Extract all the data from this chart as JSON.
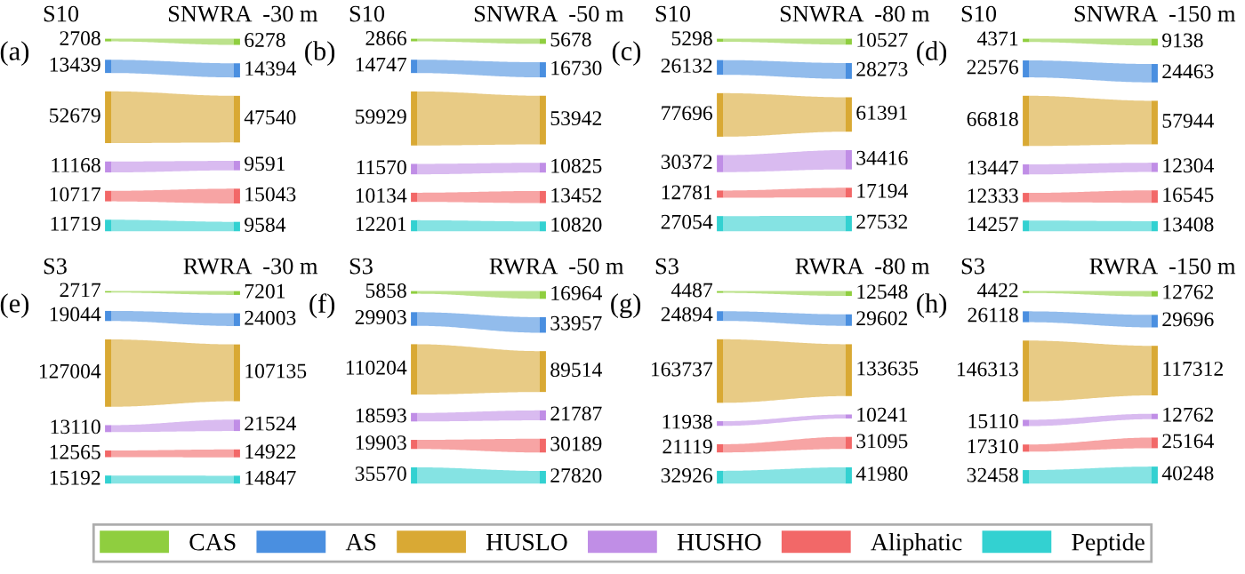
{
  "chart_data": [
    {
      "type": "other",
      "title": "(a)",
      "categories": [
        "S10",
        "SNWRA  -30 m"
      ],
      "legend": "bottom",
      "data_labels": true,
      "series": [
        {
          "name": "CAS",
          "color": "#8fce3f",
          "values": [
            2708,
            6278
          ]
        },
        {
          "name": "AS",
          "color": "#4a8fe0",
          "values": [
            13439,
            14394
          ]
        },
        {
          "name": "HUSLO",
          "color": "#d9a934",
          "values": [
            52679,
            47540
          ]
        },
        {
          "name": "HUSHO",
          "color": "#c08ee6",
          "values": [
            11168,
            9591
          ]
        },
        {
          "name": "Aliphatic",
          "color": "#f26868",
          "values": [
            10717,
            15043
          ]
        },
        {
          "name": "Peptide",
          "color": "#33d1d1",
          "values": [
            11719,
            9584
          ]
        }
      ]
    },
    {
      "type": "other",
      "title": "(b)",
      "categories": [
        "S10",
        "SNWRA  -50 m"
      ],
      "data_labels": true,
      "series": [
        {
          "color": "#8fce3f",
          "values": [
            2866,
            5678
          ]
        },
        {
          "color": "#4a8fe0",
          "values": [
            14747,
            16730
          ]
        },
        {
          "color": "#d9a934",
          "values": [
            59929,
            53942
          ]
        },
        {
          "color": "#c08ee6",
          "values": [
            11570,
            10825
          ]
        },
        {
          "color": "#f26868",
          "values": [
            10134,
            13452
          ]
        },
        {
          "color": "#33d1d1",
          "values": [
            12201,
            10820
          ]
        }
      ]
    },
    {
      "type": "other",
      "title": "(c)",
      "categories": [
        "S10",
        "SNWRA  -80 m"
      ],
      "data_labels": true,
      "series": [
        {
          "color": "#8fce3f",
          "values": [
            5298,
            10527
          ]
        },
        {
          "color": "#4a8fe0",
          "values": [
            26132,
            28273
          ]
        },
        {
          "color": "#d9a934",
          "values": [
            77696,
            61391
          ]
        },
        {
          "color": "#c08ee6",
          "values": [
            30372,
            34416
          ]
        },
        {
          "color": "#f26868",
          "values": [
            12781,
            17194
          ]
        },
        {
          "color": "#33d1d1",
          "values": [
            27054,
            27532
          ]
        }
      ]
    },
    {
      "type": "other",
      "title": "(d)",
      "categories": [
        "S10",
        "SNWRA  -150 m"
      ],
      "data_labels": true,
      "series": [
        {
          "color": "#8fce3f",
          "values": [
            4371,
            9138
          ]
        },
        {
          "color": "#4a8fe0",
          "values": [
            22576,
            24463
          ]
        },
        {
          "color": "#d9a934",
          "values": [
            66818,
            57944
          ]
        },
        {
          "color": "#c08ee6",
          "values": [
            13447,
            12304
          ]
        },
        {
          "color": "#f26868",
          "values": [
            12333,
            16545
          ]
        },
        {
          "color": "#33d1d1",
          "values": [
            14257,
            13408
          ]
        }
      ]
    },
    {
      "type": "other",
      "title": "(e)",
      "categories": [
        "S3",
        "RWRA  -30 m"
      ],
      "data_labels": true,
      "series": [
        {
          "color": "#8fce3f",
          "values": [
            2717,
            7201
          ]
        },
        {
          "color": "#4a8fe0",
          "values": [
            19044,
            24003
          ]
        },
        {
          "color": "#d9a934",
          "values": [
            127004,
            107135
          ]
        },
        {
          "color": "#c08ee6",
          "values": [
            13110,
            21524
          ]
        },
        {
          "color": "#f26868",
          "values": [
            12565,
            14922
          ]
        },
        {
          "color": "#33d1d1",
          "values": [
            15192,
            14847
          ]
        }
      ]
    },
    {
      "type": "other",
      "title": "(f)",
      "categories": [
        "S3",
        "RWRA  -50 m"
      ],
      "data_labels": true,
      "series": [
        {
          "color": "#8fce3f",
          "values": [
            5858,
            16964
          ]
        },
        {
          "color": "#4a8fe0",
          "values": [
            29903,
            33957
          ]
        },
        {
          "color": "#d9a934",
          "values": [
            110204,
            89514
          ]
        },
        {
          "color": "#c08ee6",
          "values": [
            18593,
            21787
          ]
        },
        {
          "color": "#f26868",
          "values": [
            19903,
            30189
          ]
        },
        {
          "color": "#33d1d1",
          "values": [
            35570,
            27820
          ]
        }
      ]
    },
    {
      "type": "other",
      "title": "(g)",
      "categories": [
        "S3",
        "RWRA  -80 m"
      ],
      "data_labels": true,
      "series": [
        {
          "color": "#8fce3f",
          "values": [
            4487,
            12548
          ]
        },
        {
          "color": "#4a8fe0",
          "values": [
            24894,
            29602
          ]
        },
        {
          "color": "#d9a934",
          "values": [
            163737,
            133635
          ]
        },
        {
          "color": "#c08ee6",
          "values": [
            11938,
            10241
          ]
        },
        {
          "color": "#f26868",
          "values": [
            21119,
            31095
          ]
        },
        {
          "color": "#33d1d1",
          "values": [
            32926,
            41980
          ]
        }
      ]
    },
    {
      "type": "other",
      "title": "(h)",
      "categories": [
        "S3",
        "RWRA  -150 m"
      ],
      "data_labels": true,
      "series": [
        {
          "color": "#8fce3f",
          "values": [
            4422,
            12762
          ]
        },
        {
          "color": "#4a8fe0",
          "values": [
            26118,
            29696
          ]
        },
        {
          "color": "#d9a934",
          "values": [
            146313,
            117312
          ]
        },
        {
          "color": "#c08ee6",
          "values": [
            15110,
            12762
          ]
        },
        {
          "color": "#f26868",
          "values": [
            17310,
            25164
          ]
        },
        {
          "color": "#33d1d1",
          "values": [
            32458,
            40248
          ]
        }
      ]
    }
  ]
}
